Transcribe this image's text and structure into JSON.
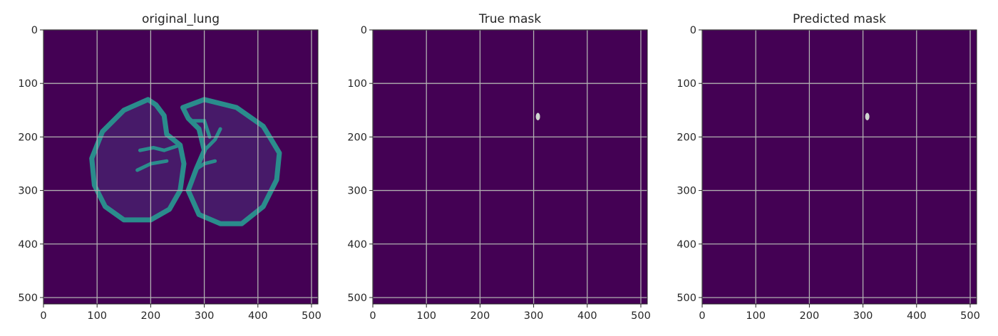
{
  "chart_data": [
    {
      "type": "heatmap",
      "title": "original_lung",
      "xlabel": "",
      "ylabel": "",
      "xlim": [
        0,
        512
      ],
      "ylim": [
        512,
        0
      ],
      "xticks": [
        0,
        100,
        200,
        300,
        400,
        500
      ],
      "yticks": [
        0,
        100,
        200,
        300,
        400,
        500
      ],
      "xticklabels": [
        "0",
        "100",
        "200",
        "300",
        "400",
        "500"
      ],
      "yticklabels": [
        "0",
        "100",
        "200",
        "300",
        "400",
        "500"
      ],
      "grid": true,
      "colormap": "viridis",
      "background_color": "#440154",
      "foreground_color": "#2a8c8c",
      "content": "lung CT slice with segmented lung region outline",
      "lung_outline": {
        "left_lung": [
          [
            195,
            130
          ],
          [
            150,
            150
          ],
          [
            110,
            190
          ],
          [
            90,
            240
          ],
          [
            95,
            290
          ],
          [
            115,
            330
          ],
          [
            150,
            355
          ],
          [
            200,
            355
          ],
          [
            235,
            335
          ],
          [
            255,
            300
          ],
          [
            262,
            250
          ],
          [
            255,
            215
          ],
          [
            230,
            195
          ],
          [
            225,
            160
          ],
          [
            210,
            140
          ]
        ],
        "right_lung": [
          [
            260,
            145
          ],
          [
            300,
            130
          ],
          [
            360,
            145
          ],
          [
            410,
            180
          ],
          [
            440,
            230
          ],
          [
            435,
            280
          ],
          [
            410,
            330
          ],
          [
            370,
            362
          ],
          [
            330,
            362
          ],
          [
            290,
            345
          ],
          [
            270,
            300
          ],
          [
            285,
            260
          ],
          [
            300,
            225
          ],
          [
            290,
            185
          ],
          [
            270,
            165
          ]
        ]
      }
    },
    {
      "type": "heatmap",
      "title": "True mask",
      "xlabel": "",
      "ylabel": "",
      "xlim": [
        0,
        512
      ],
      "ylim": [
        512,
        0
      ],
      "xticks": [
        0,
        100,
        200,
        300,
        400,
        500
      ],
      "yticks": [
        0,
        100,
        200,
        300,
        400,
        500
      ],
      "xticklabels": [
        "0",
        "100",
        "200",
        "300",
        "400",
        "500"
      ],
      "yticklabels": [
        "0",
        "100",
        "200",
        "300",
        "400",
        "500"
      ],
      "grid": true,
      "colormap": "viridis",
      "background_color": "#440154",
      "foreground_color": "#cfd6cf",
      "mask_blobs": [
        {
          "x": 308,
          "y": 162,
          "rx": 4,
          "ry": 7
        }
      ]
    },
    {
      "type": "heatmap",
      "title": "Predicted mask",
      "xlabel": "",
      "ylabel": "",
      "xlim": [
        0,
        512
      ],
      "ylim": [
        512,
        0
      ],
      "xticks": [
        0,
        100,
        200,
        300,
        400,
        500
      ],
      "yticks": [
        0,
        100,
        200,
        300,
        400,
        500
      ],
      "xticklabels": [
        "0",
        "100",
        "200",
        "300",
        "400",
        "500"
      ],
      "yticklabels": [
        "0",
        "100",
        "200",
        "300",
        "400",
        "500"
      ],
      "grid": true,
      "colormap": "viridis",
      "background_color": "#440154",
      "foreground_color": "#cfd6cf",
      "mask_blobs": [
        {
          "x": 308,
          "y": 162,
          "rx": 4,
          "ry": 7
        }
      ]
    }
  ]
}
